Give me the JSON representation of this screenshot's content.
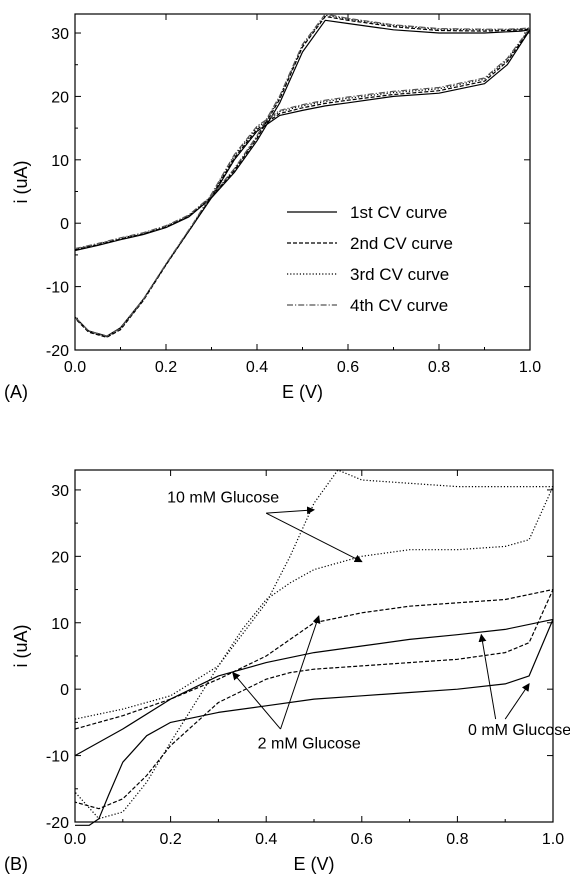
{
  "chart_data": [
    {
      "type": "line",
      "panel_label": "(A)",
      "xlabel": "E (V)",
      "ylabel": "i (uA)",
      "xlim": [
        0.0,
        1.0
      ],
      "ylim": [
        -20,
        33
      ],
      "xticks": [
        "0.0",
        "0.2",
        "0.4",
        "0.6",
        "0.8",
        "1.0"
      ],
      "yticks": [
        "-20",
        "-10",
        "0",
        "10",
        "20",
        "30"
      ],
      "legend_position": "lower-right",
      "series": [
        {
          "name": "1st CV curve",
          "style": "solid",
          "x": [
            0.0,
            0.05,
            0.1,
            0.15,
            0.2,
            0.25,
            0.3,
            0.35,
            0.4,
            0.45,
            0.5,
            0.55,
            0.6,
            0.7,
            0.8,
            0.9,
            0.95,
            0.98,
            1.0,
            0.95,
            0.9,
            0.8,
            0.7,
            0.6,
            0.55,
            0.5,
            0.45,
            0.4,
            0.35,
            0.3,
            0.26,
            0.2,
            0.15,
            0.1,
            0.07,
            0.03,
            0.0
          ],
          "y": [
            -4.3,
            -3.5,
            -2.6,
            -1.8,
            -0.7,
            1.0,
            4.0,
            8.0,
            13.0,
            19.0,
            27.0,
            32.0,
            31.5,
            30.5,
            30.0,
            30.0,
            30.2,
            30.3,
            30.5,
            25.0,
            22.0,
            20.5,
            20.0,
            19.0,
            18.5,
            17.8,
            17.0,
            14.5,
            10.0,
            4.0,
            -0.2,
            -6.5,
            -12.0,
            -16.5,
            -17.8,
            -17.0,
            -14.8
          ]
        },
        {
          "name": "2nd CV curve",
          "style": "dashed",
          "x": [
            0.0,
            0.05,
            0.1,
            0.15,
            0.2,
            0.25,
            0.3,
            0.35,
            0.4,
            0.45,
            0.5,
            0.55,
            0.6,
            0.7,
            0.8,
            0.9,
            0.95,
            0.98,
            1.0,
            0.95,
            0.9,
            0.8,
            0.7,
            0.6,
            0.55,
            0.5,
            0.45,
            0.4,
            0.35,
            0.3,
            0.26,
            0.2,
            0.15,
            0.1,
            0.07,
            0.03,
            0.0
          ],
          "y": [
            -4.2,
            -3.4,
            -2.5,
            -1.7,
            -0.6,
            1.1,
            4.1,
            8.3,
            13.4,
            19.6,
            27.8,
            32.6,
            32.0,
            31.0,
            30.4,
            30.3,
            30.4,
            30.5,
            30.6,
            25.5,
            22.4,
            20.9,
            20.3,
            19.4,
            18.9,
            18.2,
            17.3,
            14.8,
            10.3,
            4.2,
            -0.2,
            -6.6,
            -12.2,
            -16.8,
            -18.0,
            -17.2,
            -15.0
          ]
        },
        {
          "name": "3rd CV curve",
          "style": "dotted",
          "x": [
            0.0,
            0.05,
            0.1,
            0.15,
            0.2,
            0.25,
            0.3,
            0.35,
            0.4,
            0.45,
            0.5,
            0.55,
            0.6,
            0.7,
            0.8,
            0.9,
            0.95,
            0.98,
            1.0,
            0.95,
            0.9,
            0.8,
            0.7,
            0.6,
            0.55,
            0.5,
            0.45,
            0.4,
            0.35,
            0.3,
            0.26,
            0.2,
            0.15,
            0.1,
            0.07,
            0.03,
            0.0
          ],
          "y": [
            -4.1,
            -3.3,
            -2.4,
            -1.6,
            -0.5,
            1.2,
            4.2,
            8.5,
            13.6,
            19.9,
            28.0,
            32.8,
            32.2,
            31.2,
            30.6,
            30.5,
            30.5,
            30.6,
            30.7,
            25.8,
            22.7,
            21.2,
            20.6,
            19.7,
            19.2,
            18.5,
            17.6,
            15.1,
            10.6,
            4.4,
            -0.1,
            -6.5,
            -12.1,
            -16.7,
            -17.9,
            -17.1,
            -14.9
          ]
        },
        {
          "name": "4th CV curve",
          "style": "dashdot",
          "x": [
            0.0,
            0.05,
            0.1,
            0.15,
            0.2,
            0.25,
            0.3,
            0.35,
            0.4,
            0.45,
            0.5,
            0.55,
            0.6,
            0.7,
            0.8,
            0.9,
            0.95,
            0.98,
            1.0,
            0.95,
            0.9,
            0.8,
            0.7,
            0.6,
            0.55,
            0.5,
            0.45,
            0.4,
            0.35,
            0.3,
            0.26,
            0.2,
            0.15,
            0.1,
            0.07,
            0.03,
            0.0
          ],
          "y": [
            -4.0,
            -3.2,
            -2.3,
            -1.5,
            -0.4,
            1.3,
            4.3,
            8.6,
            13.8,
            20.1,
            28.2,
            33.0,
            32.3,
            31.3,
            30.7,
            30.6,
            30.6,
            30.7,
            30.8,
            26.0,
            22.9,
            21.4,
            20.8,
            19.9,
            19.4,
            18.7,
            17.8,
            15.3,
            10.8,
            4.6,
            0.0,
            -6.4,
            -12.0,
            -16.6,
            -17.8,
            -17.0,
            -14.8
          ]
        }
      ]
    },
    {
      "type": "line",
      "panel_label": "(B)",
      "xlabel": "E (V)",
      "ylabel": "i (uA)",
      "xlim": [
        0.0,
        1.0
      ],
      "ylim": [
        -20,
        33
      ],
      "xticks": [
        "0.0",
        "0.2",
        "0.4",
        "0.6",
        "0.8",
        "1.0"
      ],
      "yticks": [
        "-20",
        "-10",
        "0",
        "10",
        "20",
        "30"
      ],
      "annotations": [
        {
          "text": "10 mM Glucose",
          "x": 0.31,
          "y": 29.0,
          "arrows_to": [
            [
              0.5,
              27.0
            ],
            [
              0.6,
              19.2
            ]
          ]
        },
        {
          "text": "2 mM Glucose",
          "x": 0.49,
          "y": -8.0,
          "arrows_to": [
            [
              0.33,
              2.5
            ],
            [
              0.51,
              11.0
            ]
          ]
        },
        {
          "text": "0 mM Glucose",
          "x": 0.93,
          "y": -6.0,
          "arrows_to": [
            [
              0.85,
              8.2
            ],
            [
              0.95,
              0.8
            ]
          ]
        }
      ],
      "series": [
        {
          "name": "0 mM Glucose",
          "style": "solid",
          "x": [
            0.0,
            0.1,
            0.2,
            0.3,
            0.4,
            0.5,
            0.6,
            0.7,
            0.8,
            0.9,
            1.0,
            0.95,
            0.9,
            0.8,
            0.7,
            0.6,
            0.5,
            0.4,
            0.3,
            0.2,
            0.15,
            0.1,
            0.07,
            0.05,
            0.03,
            0.0
          ],
          "y": [
            -10.0,
            -6.0,
            -1.5,
            2.0,
            4.0,
            5.5,
            6.5,
            7.5,
            8.2,
            9.0,
            10.5,
            2.0,
            0.8,
            0.0,
            -0.5,
            -1.0,
            -1.5,
            -2.5,
            -3.5,
            -5.0,
            -7.0,
            -11.0,
            -16.0,
            -19.5,
            -20.5,
            -20.5
          ]
        },
        {
          "name": "2 mM Glucose",
          "style": "dashed",
          "x": [
            0.0,
            0.1,
            0.2,
            0.3,
            0.4,
            0.5,
            0.6,
            0.7,
            0.8,
            0.9,
            1.0,
            0.95,
            0.9,
            0.8,
            0.7,
            0.6,
            0.5,
            0.45,
            0.4,
            0.3,
            0.2,
            0.15,
            0.1,
            0.05,
            0.0
          ],
          "y": [
            -6.0,
            -4.0,
            -1.5,
            1.5,
            5.0,
            10.0,
            11.5,
            12.5,
            13.0,
            13.5,
            15.0,
            7.0,
            5.5,
            4.5,
            4.0,
            3.5,
            3.0,
            2.5,
            1.5,
            -2.0,
            -8.5,
            -13.0,
            -16.5,
            -18.0,
            -17.0
          ]
        },
        {
          "name": "10 mM Glucose",
          "style": "dotted",
          "x": [
            0.0,
            0.1,
            0.2,
            0.3,
            0.4,
            0.45,
            0.5,
            0.55,
            0.6,
            0.7,
            0.8,
            0.9,
            1.0,
            0.95,
            0.9,
            0.8,
            0.7,
            0.6,
            0.5,
            0.45,
            0.4,
            0.35,
            0.3,
            0.2,
            0.15,
            0.1,
            0.05,
            0.0
          ],
          "y": [
            -4.5,
            -3.0,
            -1.0,
            3.5,
            13.0,
            20.0,
            28.0,
            33.0,
            31.5,
            31.0,
            30.5,
            30.5,
            30.5,
            22.5,
            21.5,
            21.0,
            21.0,
            20.0,
            18.0,
            16.0,
            13.5,
            9.0,
            3.5,
            -8.0,
            -14.0,
            -18.5,
            -19.5,
            -15.5
          ]
        }
      ]
    }
  ]
}
